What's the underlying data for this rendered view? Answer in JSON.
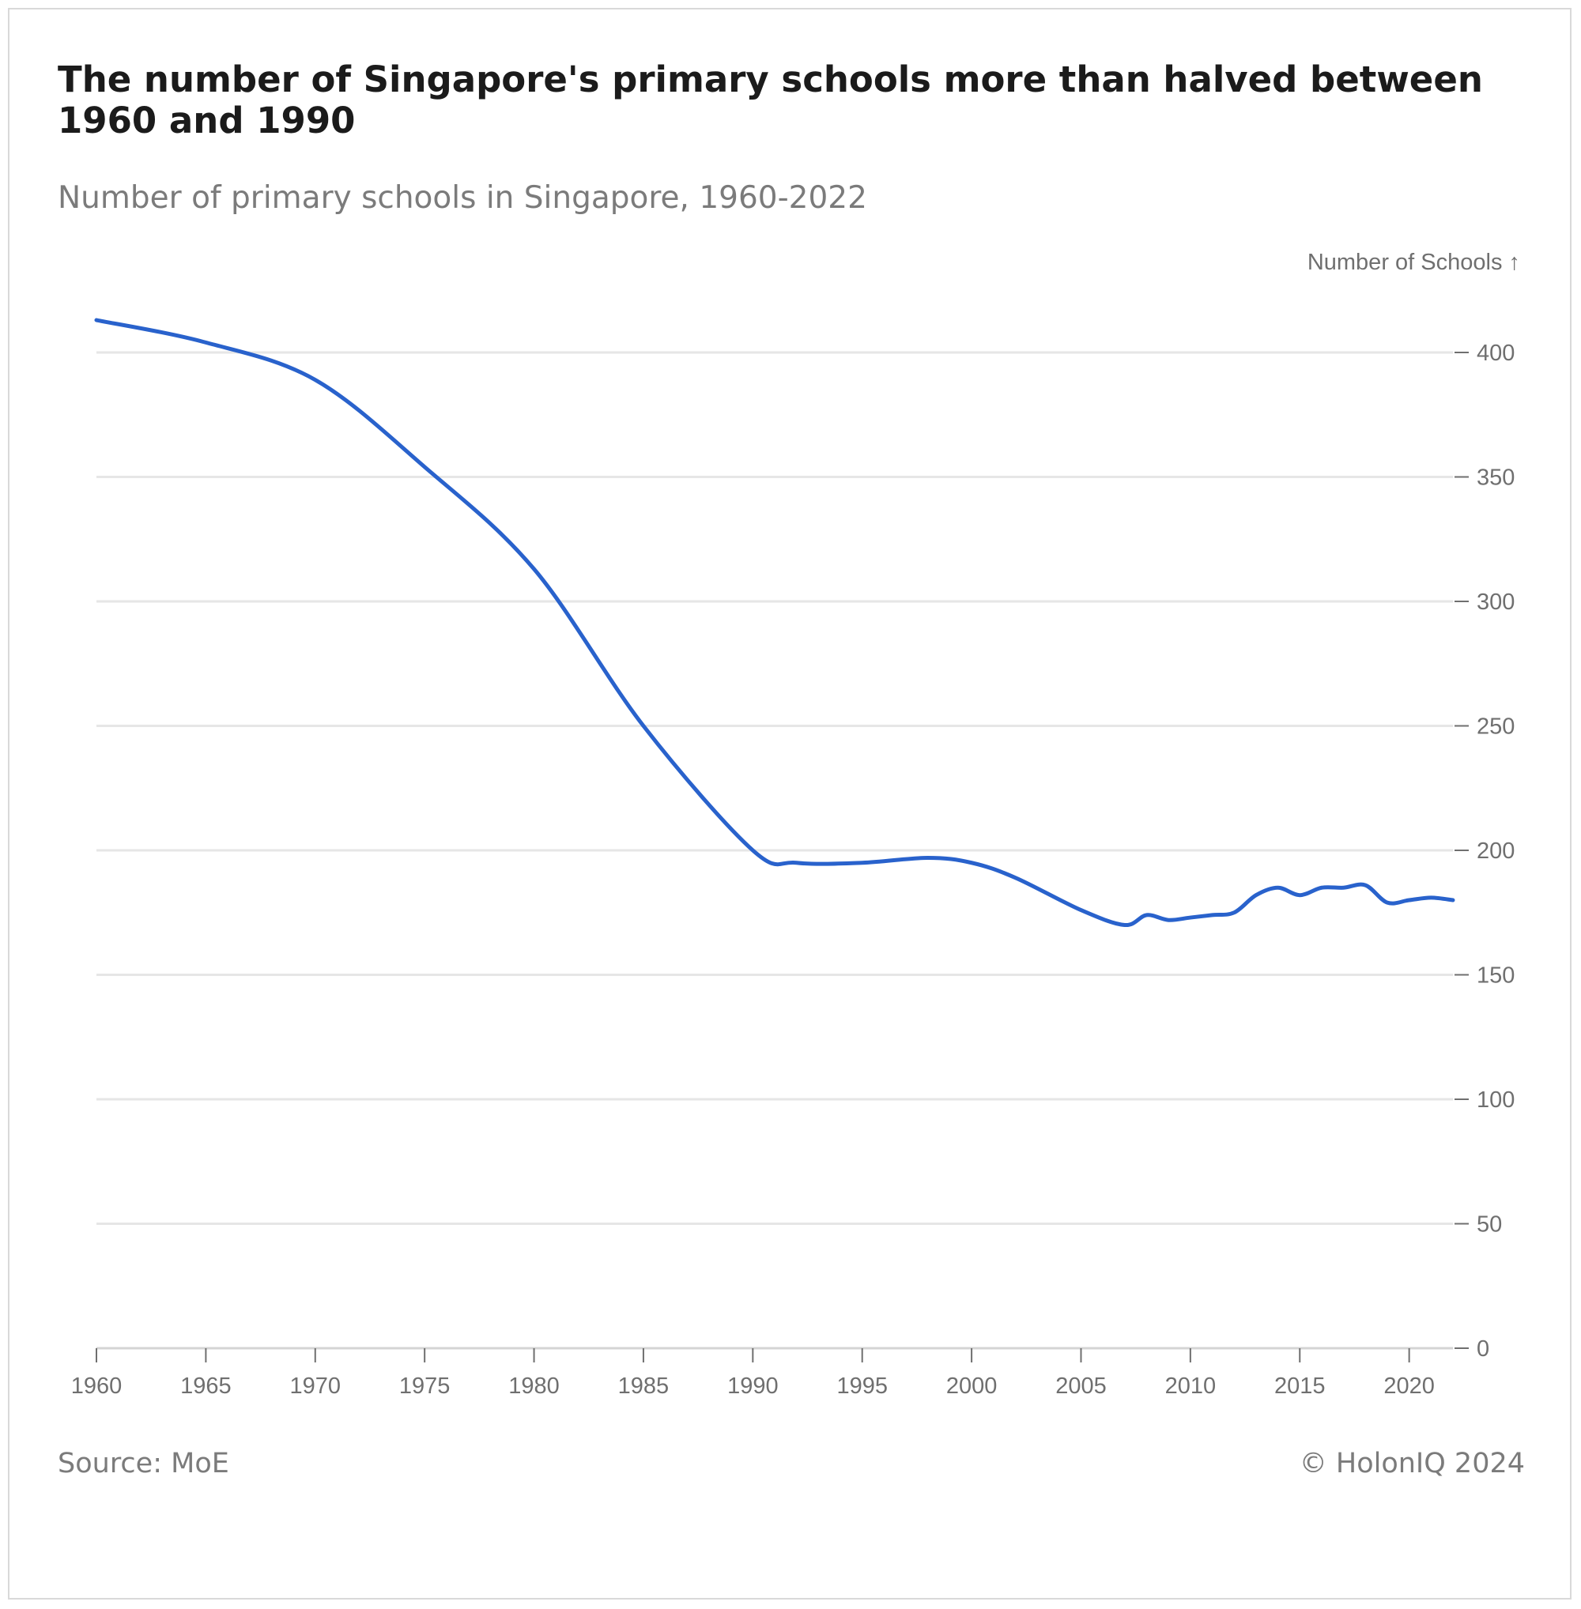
{
  "title": "The number of Singapore's primary schools more than halved between 1960 and 1990",
  "subtitle": "Number of primary schools in Singapore, 1960-2022",
  "source": "Source: MoE",
  "credit": "© HolonIQ 2024",
  "colors": {
    "line": "#2962cc",
    "grid": "#e6e6e6",
    "text": "#6f6f6f",
    "title": "#1b1b1b"
  },
  "chart_data": {
    "type": "line",
    "title": "The number of Singapore's primary schools more than halved between 1960 and 1990",
    "subtitle": "Number of primary schools in Singapore, 1960-2022",
    "ylabel": "Number of Schools ↑",
    "xlabel": "",
    "xlim": [
      1960,
      2022
    ],
    "ylim": [
      0,
      400
    ],
    "grid": true,
    "y_axis_side": "right",
    "x_ticks": [
      1960,
      1965,
      1970,
      1975,
      1980,
      1985,
      1990,
      1995,
      2000,
      2005,
      2010,
      2015,
      2020
    ],
    "y_ticks": [
      0,
      50,
      100,
      150,
      200,
      250,
      300,
      350,
      400
    ],
    "series": [
      {
        "x": [
          1960,
          1965,
          1970,
          1975,
          1980,
          1985,
          1990,
          1992,
          1995,
          1998,
          2000,
          2002,
          2005,
          2007,
          2008,
          2009,
          2010,
          2011,
          2012,
          2013,
          2014,
          2015,
          2016,
          2017,
          2018,
          2019,
          2020,
          2021,
          2022
        ],
        "values": [
          413,
          404,
          389,
          354,
          313,
          250,
          200,
          195,
          195,
          197,
          195,
          189,
          176,
          170,
          174,
          172,
          173,
          174,
          175,
          182,
          185,
          182,
          185,
          185,
          186,
          179,
          180,
          181,
          180
        ]
      }
    ]
  }
}
